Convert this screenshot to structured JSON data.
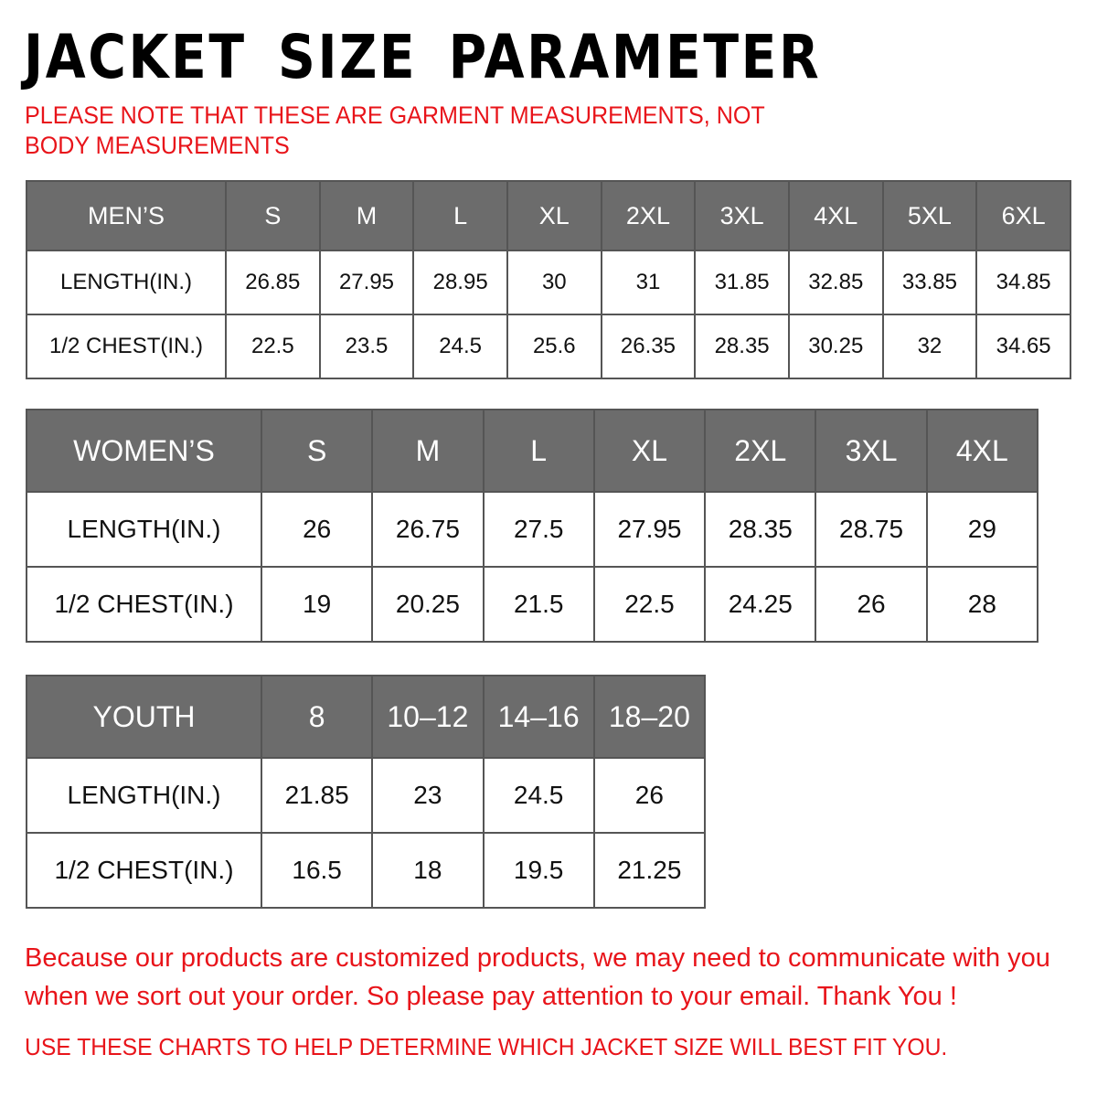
{
  "title": "JACKET SIZE PARAMETER",
  "note": "PLEASE NOTE THAT THESE ARE GARMENT MEASUREMENTS, NOT BODY MEASUREMENTS",
  "colors": {
    "header_bg": "#6c6c6c",
    "accent_red": "#e8141a"
  },
  "tables": [
    {
      "id": "men",
      "header": [
        "MEN’S",
        "S",
        "M",
        "L",
        "XL",
        "2XL",
        "3XL",
        "4XL",
        "5XL",
        "6XL"
      ],
      "rows": [
        [
          "LENGTH(IN.)",
          "26.85",
          "27.95",
          "28.95",
          "30",
          "31",
          "31.85",
          "32.85",
          "33.85",
          "34.85"
        ],
        [
          "1/2 CHEST(IN.)",
          "22.5",
          "23.5",
          "24.5",
          "25.6",
          "26.35",
          "28.35",
          "30.25",
          "32",
          "34.65"
        ]
      ]
    },
    {
      "id": "women",
      "header": [
        "WOMEN’S",
        "S",
        "M",
        "L",
        "XL",
        "2XL",
        "3XL",
        "4XL"
      ],
      "rows": [
        [
          "LENGTH(IN.)",
          "26",
          "26.75",
          "27.5",
          "27.95",
          "28.35",
          "28.75",
          "29"
        ],
        [
          "1/2 CHEST(IN.)",
          "19",
          "20.25",
          "21.5",
          "22.5",
          "24.25",
          "26",
          "28"
        ]
      ]
    },
    {
      "id": "youth",
      "header": [
        "YOUTH",
        "8",
        "10–12",
        "14–16",
        "18–20"
      ],
      "rows": [
        [
          "LENGTH(IN.)",
          "21.85",
          "23",
          "24.5",
          "26"
        ],
        [
          "1/2 CHEST(IN.)",
          "16.5",
          "18",
          "19.5",
          "21.25"
        ]
      ]
    }
  ],
  "footer": "Because our products are customized products, we may need to communicate with you when we sort out your order. So please pay attention to your email. Thank You !",
  "footer2": "USE THESE CHARTS TO HELP DETERMINE WHICH JACKET SIZE WILL BEST FIT YOU."
}
